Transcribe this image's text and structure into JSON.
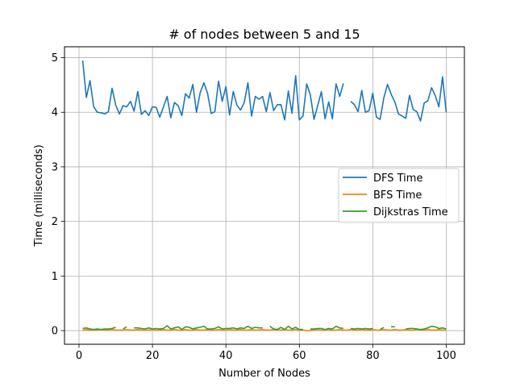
{
  "chart_data": {
    "type": "line",
    "title": "# of nodes between 5 and 15",
    "xlabel": "Number of Nodes",
    "ylabel": "Time (milliseconds)",
    "xlim": [
      -3.95,
      104.95
    ],
    "ylim": [
      -0.25,
      5.2
    ],
    "xticks": [
      0,
      20,
      40,
      60,
      80,
      100
    ],
    "yticks": [
      0,
      1,
      2,
      3,
      4,
      5
    ],
    "grid": true,
    "legend_position": "center-right",
    "series": [
      {
        "name": "DFS Time",
        "color": "#1f77b4",
        "x": [
          1,
          2,
          3,
          4,
          5,
          6,
          7,
          8,
          9,
          10,
          11,
          12,
          13,
          14,
          15,
          16,
          17,
          18,
          19,
          20,
          21,
          22,
          23,
          24,
          25,
          26,
          27,
          28,
          29,
          30,
          31,
          32,
          33,
          34,
          35,
          36,
          37,
          38,
          39,
          40,
          41,
          42,
          43,
          44,
          45,
          46,
          47,
          48,
          49,
          50,
          51,
          52,
          53,
          54,
          55,
          56,
          57,
          58,
          59,
          60,
          61,
          62,
          63,
          64,
          65,
          66,
          67,
          68,
          69,
          70,
          71,
          72,
          73,
          74,
          75,
          76,
          77,
          78,
          79,
          80,
          81,
          82,
          83,
          84,
          85,
          86,
          87,
          88,
          89,
          90,
          91,
          92,
          93,
          94,
          95,
          96,
          97,
          98,
          99,
          100
        ],
        "values": [
          4.95,
          4.27,
          4.58,
          4.1,
          4.0,
          3.99,
          3.97,
          4.01,
          4.44,
          4.13,
          3.97,
          4.12,
          4.1,
          4.2,
          4.02,
          4.38,
          3.96,
          4.03,
          3.94,
          4.1,
          4.09,
          3.91,
          4.1,
          4.29,
          3.9,
          4.18,
          4.12,
          3.94,
          4.34,
          4.26,
          4.51,
          4.0,
          4.36,
          4.54,
          4.35,
          3.98,
          4.01,
          4.57,
          4.2,
          4.47,
          3.95,
          4.38,
          4.13,
          4.04,
          4.18,
          4.54,
          3.93,
          4.29,
          4.24,
          4.29,
          4.01,
          4.36,
          4.03,
          4.14,
          4.14,
          3.86,
          4.39,
          3.98,
          4.67,
          3.86,
          3.93,
          4.52,
          4.32,
          3.87,
          4.12,
          4.38,
          3.88,
          4.19,
          3.88,
          4.52,
          4.29,
          4.53,
          null,
          4.2,
          4.14,
          4.01,
          4.4,
          4.0,
          4.03,
          4.35,
          3.91,
          3.87,
          4.26,
          4.51,
          4.33,
          4.19,
          3.97,
          3.93,
          3.89,
          4.31,
          4.05,
          4.01,
          3.84,
          4.17,
          4.21,
          4.45,
          4.31,
          4.1,
          4.65,
          4.0
        ]
      },
      {
        "name": "BFS Time",
        "color": "#ff7f0e",
        "x": [
          1,
          2,
          3,
          4,
          5,
          6,
          7,
          8,
          9,
          10,
          11,
          12,
          13,
          14,
          15,
          16,
          17,
          18,
          19,
          20,
          21,
          22,
          23,
          24,
          25,
          26,
          27,
          28,
          29,
          30,
          31,
          32,
          33,
          34,
          35,
          36,
          37,
          38,
          39,
          40,
          41,
          42,
          43,
          44,
          45,
          46,
          47,
          48,
          49,
          50,
          51,
          52,
          53,
          54,
          55,
          56,
          57,
          58,
          59,
          60,
          61,
          62,
          63,
          64,
          65,
          66,
          67,
          68,
          69,
          70,
          71,
          72,
          73,
          74,
          75,
          76,
          77,
          78,
          79,
          80,
          81,
          82,
          83,
          84,
          85,
          86,
          87,
          88,
          89,
          90,
          91,
          92,
          93,
          94,
          95,
          96,
          97,
          98,
          99,
          100
        ],
        "values": [
          0.01,
          0.02,
          0.01,
          0.01,
          0.01,
          0.02,
          0.01,
          0.01,
          0.02,
          0.01,
          0.01,
          0.01,
          0.02,
          0.01,
          0.01,
          0.02,
          0.01,
          0.01,
          0.01,
          0.02,
          0.01,
          0.01,
          0.02,
          0.01,
          0.01,
          0.02,
          0.01,
          0.01,
          0.02,
          0.01,
          0.01,
          0.02,
          0.01,
          0.01,
          0.02,
          0.01,
          0.01,
          0.02,
          0.01,
          0.01,
          0.02,
          0.01,
          0.01,
          0.02,
          0.01,
          0.01,
          0.02,
          0.01,
          0.01,
          0.02,
          0.01,
          0.01,
          0.02,
          0.01,
          0.01,
          0.02,
          0.01,
          0.01,
          0.02,
          0.01,
          0.01,
          0.0,
          0.0,
          0.01,
          0.02,
          0.01,
          0.01,
          0.02,
          0.01,
          0.01,
          0.02,
          0.01,
          0.01,
          0.02,
          0.01,
          0.01,
          0.02,
          0.01,
          0.01,
          0.02,
          0.01,
          0.01,
          0.02,
          0.01,
          0.01,
          0.02,
          0.01,
          0.01,
          0.02,
          0.01,
          0.01,
          0.02,
          0.01,
          0.01,
          0.02,
          0.01,
          0.01,
          0.02,
          0.01,
          0.01
        ]
      },
      {
        "name": "Dijkstras Time",
        "color": "#2ca02c",
        "x": [
          1,
          2,
          3,
          4,
          5,
          6,
          7,
          8,
          9,
          10,
          11,
          12,
          13,
          14,
          15,
          16,
          17,
          18,
          19,
          20,
          21,
          22,
          23,
          24,
          25,
          26,
          27,
          28,
          29,
          30,
          31,
          32,
          33,
          34,
          35,
          36,
          37,
          38,
          39,
          40,
          41,
          42,
          43,
          44,
          45,
          46,
          47,
          48,
          49,
          50,
          51,
          52,
          53,
          54,
          55,
          56,
          57,
          58,
          59,
          60,
          61,
          62,
          63,
          64,
          65,
          66,
          67,
          68,
          69,
          70,
          71,
          72,
          73,
          74,
          75,
          76,
          77,
          78,
          79,
          80,
          81,
          82,
          83,
          84,
          85,
          86,
          87,
          88,
          89,
          90,
          91,
          92,
          93,
          94,
          95,
          96,
          97,
          98,
          99,
          100
        ],
        "values": [
          0.04,
          0.05,
          0.03,
          0.02,
          0.03,
          0.02,
          0.03,
          0.03,
          0.04,
          0.06,
          null,
          0.03,
          0.07,
          null,
          0.05,
          0.05,
          0.04,
          0.03,
          0.05,
          0.03,
          0.04,
          0.03,
          0.04,
          0.09,
          0.03,
          0.05,
          0.07,
          0.02,
          0.07,
          0.06,
          0.03,
          0.05,
          0.06,
          0.08,
          0.03,
          0.03,
          0.04,
          0.07,
          0.03,
          0.04,
          0.04,
          0.05,
          0.03,
          0.05,
          0.04,
          0.08,
          0.04,
          0.06,
          0.05,
          0.05,
          null,
          0.08,
          0.03,
          0.02,
          0.06,
          0.02,
          0.08,
          0.03,
          0.06,
          0.02,
          0.02,
          null,
          0.03,
          0.03,
          0.04,
          0.04,
          0.02,
          0.04,
          0.03,
          0.08,
          0.05,
          0.04,
          null,
          0.04,
          0.03,
          0.04,
          0.03,
          0.04,
          0.03,
          0.04,
          null,
          0.02,
          0.06,
          null,
          0.07,
          0.07,
          null,
          null,
          0.03,
          0.04,
          0.04,
          0.03,
          0.02,
          0.03,
          0.05,
          0.08,
          0.07,
          0.04,
          0.05,
          0.03
        ]
      }
    ]
  }
}
